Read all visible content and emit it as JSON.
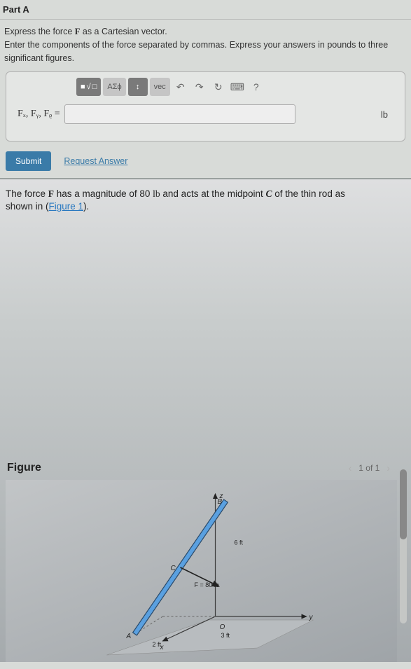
{
  "part": "Part A",
  "instruction1_pre": "Express the force ",
  "instruction1_var": "F",
  "instruction1_post": " as a Cartesian vector.",
  "instruction2": "Enter the components of the force separated by commas. Express your answers in pounds to three significant figures.",
  "toolbar": {
    "templates": "■",
    "frac": "√",
    "sub": "□",
    "greek": "ΑΣϕ",
    "updown": "↕",
    "vec": "vec",
    "undo": "↶",
    "redo": "↷",
    "reset": "↻",
    "keyboard": "⌨",
    "help": "?"
  },
  "input": {
    "label": "Fₓ, Fᵧ, Fᵨ =",
    "value": "",
    "unit": "lb"
  },
  "submit_label": "Submit",
  "request_label": "Request Answer",
  "problem": {
    "p1": "The force ",
    "var_F": "F",
    "p2": " has a magnitude of 80 ",
    "unit_lb": "lb",
    "p3": " and acts at the midpoint ",
    "var_C": "C",
    "p4": " of the thin rod as shown in (",
    "fig_link": "Figure 1",
    "p5": ")."
  },
  "figure": {
    "heading": "Figure",
    "pager_prev": "‹",
    "pager_text": "1 of 1",
    "pager_next": "›",
    "labels": {
      "A": "A",
      "B": "B",
      "C": "C",
      "O": "O",
      "z": "z",
      "y": "y",
      "x": "x",
      "F": "F = 80 lb",
      "d6": "6 ft",
      "d3": "3 ft",
      "d2": "2 ft"
    },
    "colors": {
      "axes": "#3a3a3a",
      "rod_top": "#5aa0e0",
      "rod_bot": "#8a8f94",
      "rod_border": "#2a4a6a",
      "arrow": "#222",
      "text": "#222",
      "ground": "#b8bcbf"
    },
    "geom": {
      "O": [
        270,
        195
      ],
      "B": [
        285,
        30
      ],
      "A": [
        155,
        220
      ],
      "C": [
        220,
        125
      ],
      "y_end": [
        400,
        195
      ],
      "x_end": [
        195,
        230
      ],
      "z_end": [
        270,
        20
      ],
      "arrow_end": [
        275,
        152
      ]
    }
  },
  "bg_color": "#d8dbd8"
}
